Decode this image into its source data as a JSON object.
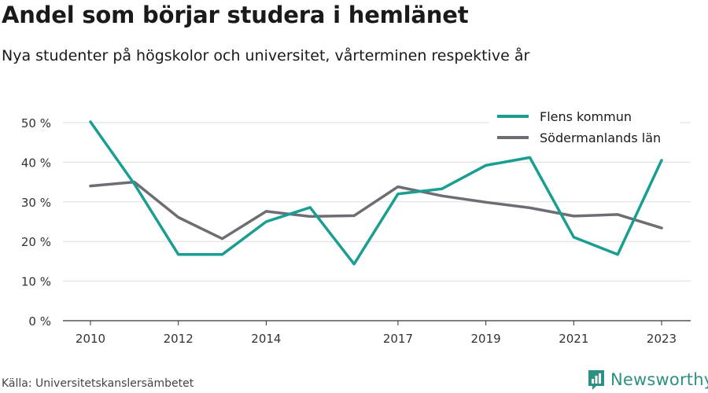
{
  "header": {
    "title": "Andel som börjar studera i hemlänet",
    "subtitle": "Nya studenter på högskolor och universitet, vårterminen respektive år"
  },
  "footer": {
    "source": "Källa: Universitetskanslersämbetet",
    "brand": "Newsworthy",
    "brand_icon": "bar-chart-logo-icon"
  },
  "colors": {
    "flen": "#1a9e91",
    "sodermanland": "#6d6d74",
    "grid": "#dddddd",
    "brand": "#2e8f83"
  },
  "chart_data": {
    "type": "line",
    "x": [
      2010,
      2011,
      2012,
      2013,
      2014,
      2015,
      2016,
      2017,
      2018,
      2019,
      2020,
      2021,
      2022,
      2023
    ],
    "xticks": [
      2010,
      2012,
      2014,
      2017,
      2019,
      2021,
      2023
    ],
    "xtick_labels": [
      "2010",
      "2012",
      "2014",
      "2017",
      "2019",
      "2021",
      "2023"
    ],
    "xlim": [
      2010,
      2023
    ],
    "ylim": [
      0,
      50
    ],
    "yticks": [
      0,
      10,
      20,
      30,
      40,
      50
    ],
    "ytick_labels": [
      "0 %",
      "10 %",
      "20 %",
      "30 %",
      "40 %",
      "50 %"
    ],
    "grid": true,
    "legend_position": "top-right",
    "series": [
      {
        "name": "Flens kommun",
        "color": "#1a9e91",
        "values": [
          50.2,
          34.5,
          16.7,
          16.7,
          25.0,
          28.6,
          14.3,
          32.0,
          33.3,
          39.2,
          41.2,
          21.1,
          16.7,
          40.5
        ]
      },
      {
        "name": "Södermanlands län",
        "color": "#6d6d74",
        "values": [
          34.0,
          35.0,
          26.1,
          20.7,
          27.6,
          26.3,
          26.5,
          33.8,
          31.5,
          29.9,
          28.5,
          26.4,
          26.8,
          23.4
        ]
      }
    ]
  }
}
